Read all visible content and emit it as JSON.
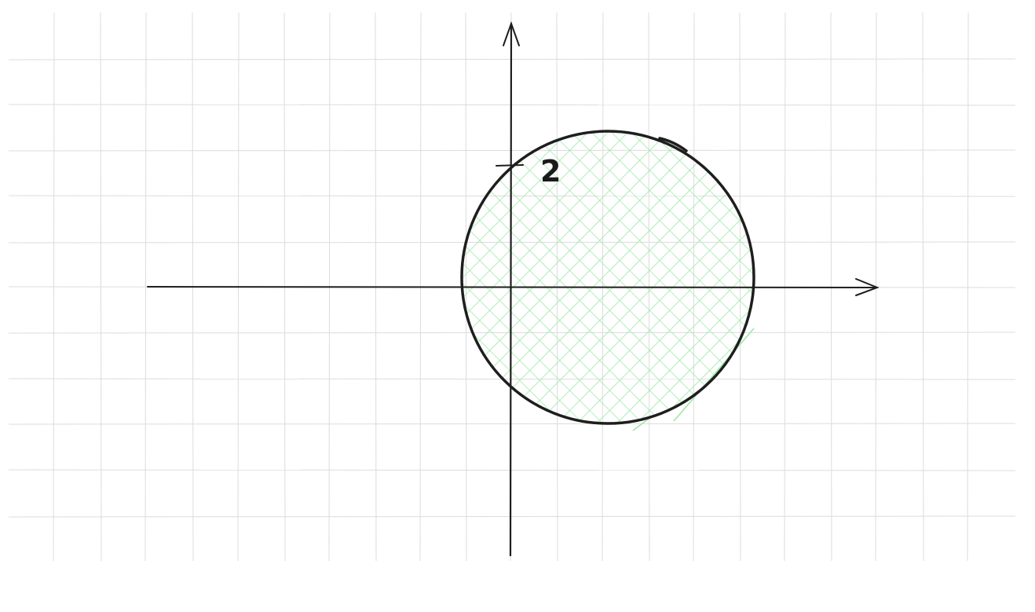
{
  "diagram": {
    "y_tick_label": "2",
    "colors": {
      "background": "#ffffff",
      "grid": "#dcdcdc",
      "axis": "#1e1e1e",
      "circle_stroke": "#1e1e1e",
      "hatch": "#9ee7a8"
    }
  }
}
